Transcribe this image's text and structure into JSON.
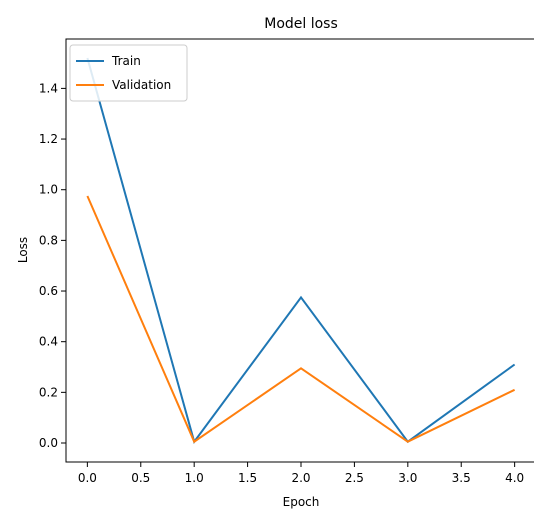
{
  "chart_data": {
    "type": "line",
    "title": "Model loss",
    "xlabel": "Epoch",
    "ylabel": "Loss",
    "x": [
      0,
      1,
      2,
      3,
      4
    ],
    "series": [
      {
        "name": "Train",
        "values": [
          1.52,
          0.005,
          0.575,
          0.005,
          0.31
        ],
        "color": "#1f77b4"
      },
      {
        "name": "Validation",
        "values": [
          0.975,
          0.005,
          0.295,
          0.005,
          0.21
        ],
        "color": "#ff7f0e"
      }
    ],
    "xlim": [
      -0.2,
      4.2
    ],
    "ylim": [
      -0.075,
      1.595
    ],
    "xticks": [
      0.0,
      0.5,
      1.0,
      1.5,
      2.0,
      2.5,
      3.0,
      3.5,
      4.0
    ],
    "xtick_labels": [
      "0.0",
      "0.5",
      "1.0",
      "1.5",
      "2.0",
      "2.5",
      "3.0",
      "3.5",
      "4.0"
    ],
    "yticks": [
      0.0,
      0.2,
      0.4,
      0.6,
      0.8,
      1.0,
      1.2,
      1.4
    ],
    "ytick_labels": [
      "0.0",
      "0.2",
      "0.4",
      "0.6",
      "0.8",
      "1.0",
      "1.2",
      "1.4"
    ],
    "grid": false,
    "legend_position": "top-left"
  }
}
